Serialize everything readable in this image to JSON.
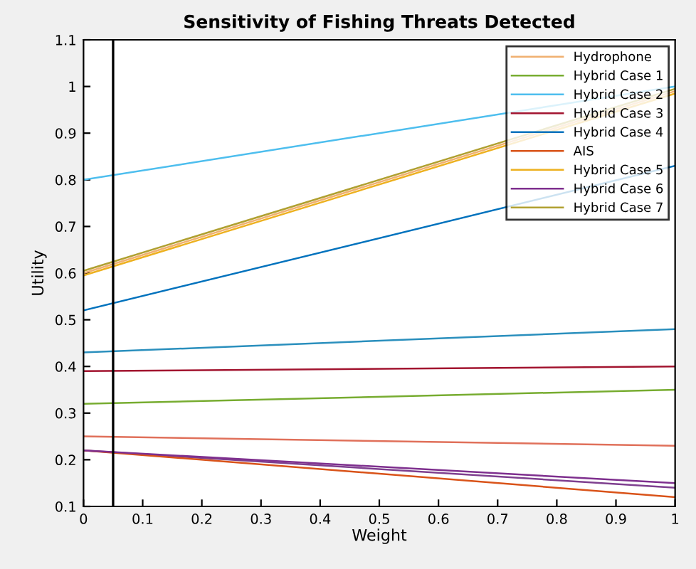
{
  "chart_data": {
    "type": "line",
    "title": "Sensitivity of Fishing Threats Detected",
    "xlabel": "Weight",
    "ylabel": "Utility",
    "x": [
      0,
      1
    ],
    "series": [
      {
        "color": "#2a8fbd",
        "values": [
          0.43,
          0.48
        ]
      },
      {
        "color": "#e0705a",
        "values": [
          0.25,
          0.23
        ]
      },
      {
        "name": "Hydrophone",
        "color": "#f0b070",
        "values": [
          0.6,
          0.99
        ]
      },
      {
        "color": "#7e3f8f",
        "values": [
          0.22,
          0.14
        ]
      },
      {
        "name": "Hybrid Case 1",
        "color": "#77ac30",
        "values": [
          0.32,
          0.35
        ]
      },
      {
        "name": "Hybrid Case 2",
        "color": "#4dbeee",
        "values": [
          0.8,
          1.0
        ]
      },
      {
        "name": "Hybrid Case 3",
        "color": "#a2142f",
        "values": [
          0.39,
          0.4
        ]
      },
      {
        "name": "Hybrid Case 4",
        "color": "#0072bd",
        "values": [
          0.52,
          0.83
        ]
      },
      {
        "name": "AIS",
        "color": "#d95319",
        "values": [
          0.22,
          0.12
        ]
      },
      {
        "name": "Hybrid Case 5",
        "color": "#edb120",
        "values": [
          0.595,
          0.985
        ]
      },
      {
        "name": "Hybrid Case 6",
        "color": "#7e2f8e",
        "values": [
          0.22,
          0.15
        ]
      },
      {
        "name": "Hybrid Case 7",
        "color": "#b0a030",
        "values": [
          0.605,
          0.995
        ]
      }
    ],
    "xlim": [
      0,
      1
    ],
    "xticks": [
      0,
      0.1,
      0.2,
      0.3,
      0.4,
      0.5,
      0.6,
      0.7,
      0.8,
      0.9,
      1
    ],
    "ylim": [
      0.1,
      1.1
    ],
    "yticks": [
      0.1,
      0.2,
      0.3,
      0.4,
      0.5,
      0.6,
      0.7,
      0.8,
      0.9,
      1,
      1.1
    ],
    "ref_lines": [
      {
        "axis": "x",
        "value": 0.05,
        "color": "#000000"
      }
    ],
    "legend": "top right",
    "grid": false,
    "marker": "none",
    "line_style": "solid"
  }
}
